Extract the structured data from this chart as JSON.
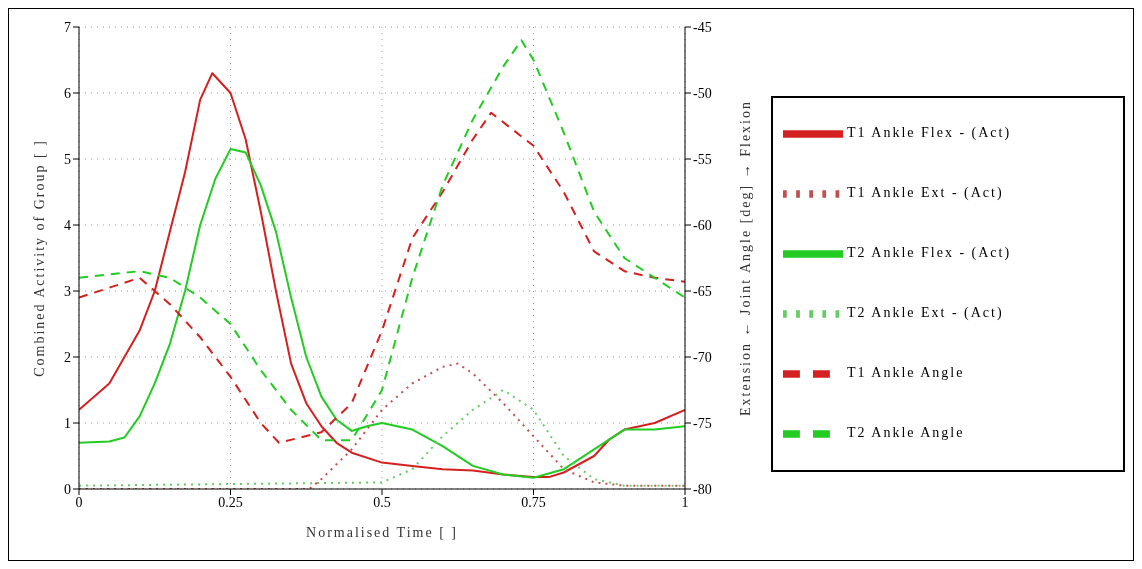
{
  "chart_data": {
    "type": "line",
    "xlabel": "Normalised Time [ ]",
    "ylabel": "Combined Activity of Group [ ]",
    "y2label": "Extension ← Joint Angle [deg] → Flexion",
    "xlim": [
      0,
      1
    ],
    "xticks": [
      0,
      0.25,
      0.5,
      0.75,
      1
    ],
    "ylim": [
      0,
      7
    ],
    "yticks": [
      0,
      1,
      2,
      3,
      4,
      5,
      6,
      7
    ],
    "y2lim": [
      -80,
      -45
    ],
    "y2ticks": [
      -80,
      -75,
      -70,
      -65,
      -60,
      -55,
      -50,
      -45
    ],
    "grid": true,
    "legend": "right",
    "marker": "none",
    "series": [
      {
        "name": "T1 Ankle Flex - (Act)",
        "color": "#d42020",
        "line_style": "solid",
        "x": [
          0,
          0.05,
          0.1,
          0.125,
          0.15,
          0.175,
          0.2,
          0.22,
          0.25,
          0.275,
          0.3,
          0.325,
          0.35,
          0.375,
          0.4,
          0.425,
          0.45,
          0.5,
          0.55,
          0.6,
          0.65,
          0.7,
          0.75,
          0.775,
          0.8,
          0.85,
          0.875,
          0.9,
          0.95,
          1
        ],
        "values": [
          1.2,
          1.6,
          2.4,
          3.0,
          3.9,
          4.8,
          5.9,
          6.3,
          6.0,
          5.3,
          4.2,
          3.0,
          1.9,
          1.3,
          0.95,
          0.7,
          0.55,
          0.4,
          0.35,
          0.3,
          0.28,
          0.22,
          0.18,
          0.18,
          0.25,
          0.5,
          0.75,
          0.9,
          1.0,
          1.2
        ]
      },
      {
        "name": "T1 Ankle Ext - (Act)",
        "color": "#c05050",
        "line_style": "dotted",
        "x": [
          0,
          0.38,
          0.4,
          0.45,
          0.5,
          0.55,
          0.6,
          0.625,
          0.65,
          0.7,
          0.75,
          0.8,
          0.85,
          0.9,
          1
        ],
        "values": [
          0,
          0,
          0.15,
          0.6,
          1.2,
          1.6,
          1.85,
          1.9,
          1.75,
          1.3,
          0.8,
          0.3,
          0.1,
          0.05,
          0.05
        ]
      },
      {
        "name": "T2 Ankle Flex - (Act)",
        "color": "#22cc22",
        "line_style": "solid",
        "x": [
          0,
          0.05,
          0.075,
          0.1,
          0.125,
          0.15,
          0.175,
          0.2,
          0.225,
          0.25,
          0.275,
          0.3,
          0.325,
          0.35,
          0.375,
          0.4,
          0.425,
          0.45,
          0.475,
          0.5,
          0.55,
          0.6,
          0.65,
          0.7,
          0.75,
          0.8,
          0.85,
          0.9,
          0.95,
          1
        ],
        "values": [
          0.7,
          0.72,
          0.78,
          1.1,
          1.6,
          2.2,
          3.0,
          4.0,
          4.7,
          5.15,
          5.1,
          4.6,
          3.9,
          2.9,
          2.0,
          1.4,
          1.05,
          0.88,
          0.95,
          1.0,
          0.9,
          0.65,
          0.35,
          0.22,
          0.17,
          0.3,
          0.6,
          0.9,
          0.9,
          0.95
        ]
      },
      {
        "name": "T2 Ankle Ext - (Act)",
        "color": "#66cc66",
        "line_style": "dotted",
        "x": [
          0,
          0.5,
          0.55,
          0.6,
          0.65,
          0.7,
          0.75,
          0.8,
          0.85,
          0.9,
          1
        ],
        "values": [
          0.05,
          0.1,
          0.3,
          0.8,
          1.2,
          1.5,
          1.2,
          0.5,
          0.15,
          0.05,
          0.05
        ]
      },
      {
        "name": "T1 Ankle Angle",
        "color": "#d42020",
        "line_style": "dashed",
        "axis": "y2",
        "x": [
          0,
          0.1,
          0.15,
          0.2,
          0.25,
          0.3,
          0.33,
          0.4,
          0.45,
          0.5,
          0.55,
          0.6,
          0.65,
          0.68,
          0.75,
          0.8,
          0.85,
          0.9,
          0.95,
          1
        ],
        "values": [
          -65.5,
          -64,
          -66,
          -68.5,
          -71.5,
          -75,
          -76.5,
          -75.7,
          -73.5,
          -68,
          -61,
          -57.5,
          -53.5,
          -51.5,
          -54,
          -57.5,
          -62,
          -63.5,
          -64,
          -64.3
        ]
      },
      {
        "name": "T2 Ankle Angle",
        "color": "#22cc22",
        "line_style": "dashed",
        "axis": "y2",
        "x": [
          0,
          0.1,
          0.15,
          0.2,
          0.25,
          0.3,
          0.35,
          0.4,
          0.45,
          0.5,
          0.55,
          0.6,
          0.65,
          0.7,
          0.73,
          0.75,
          0.8,
          0.85,
          0.9,
          0.95,
          1
        ],
        "values": [
          -64,
          -63.5,
          -64,
          -65.5,
          -67.5,
          -71,
          -74,
          -76.3,
          -76.3,
          -72.5,
          -64,
          -57,
          -52,
          -48,
          -46,
          -47.5,
          -53,
          -59,
          -62.5,
          -64,
          -65.5
        ]
      }
    ]
  }
}
